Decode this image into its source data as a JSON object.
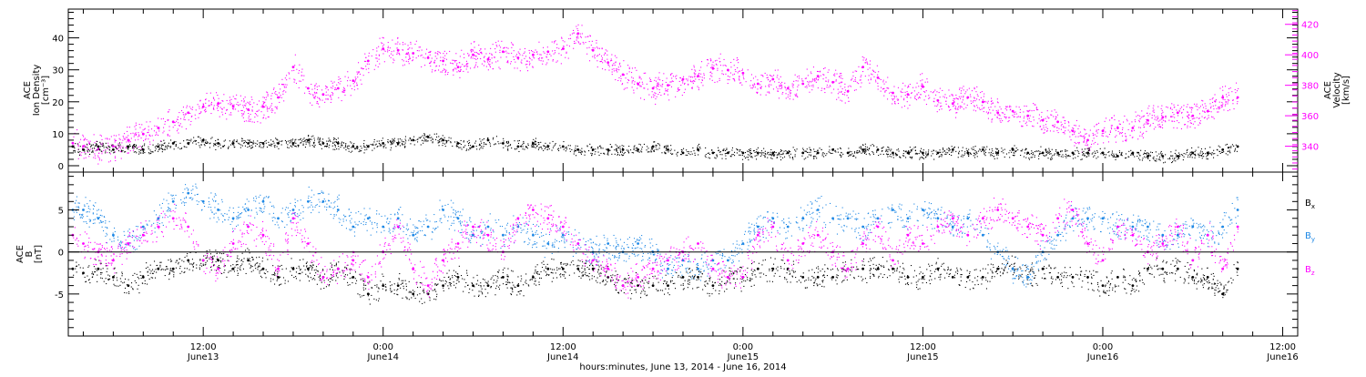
{
  "chart_data": [
    {
      "type": "scatter",
      "panel": "top",
      "ylabel": [
        "ACE",
        "Ion Density",
        "[cm⁻³]"
      ],
      "ylabel_right": [
        "ACE",
        "Velocity",
        "[km/s]"
      ],
      "ylim": [
        -2,
        49
      ],
      "ylim_right": [
        323,
        430
      ],
      "yticks": [
        0,
        10,
        20,
        30,
        40
      ],
      "yticks_right": [
        340,
        360,
        380,
        400,
        420
      ],
      "x_unit": "hours since 00:00 June 13, 2014",
      "xlim": [
        3,
        85
      ],
      "series": [
        {
          "name": "Ion Density",
          "axis": "left",
          "color": "#000000",
          "x": [
            3.3,
            4,
            5,
            6,
            7,
            8,
            9,
            10,
            11,
            12,
            13,
            14,
            15,
            16,
            17,
            18,
            19,
            20,
            21,
            22,
            23,
            24,
            25,
            26,
            27,
            28,
            29,
            30,
            31,
            32,
            33,
            34,
            35,
            36,
            37,
            38,
            39,
            40,
            41,
            42,
            43,
            44,
            45,
            46,
            47,
            48,
            49,
            50,
            51,
            52,
            53,
            54,
            55,
            56,
            57,
            58,
            59,
            60,
            61,
            62,
            63,
            64,
            65,
            66,
            67,
            68,
            69,
            70,
            71,
            72,
            73,
            74,
            75,
            76,
            77,
            78,
            79,
            80,
            81
          ],
          "y": [
            6,
            5,
            6,
            5,
            6,
            5,
            6,
            7,
            7,
            8,
            7,
            7,
            7,
            7,
            7,
            7,
            8,
            7,
            7,
            6,
            6,
            7,
            7,
            8,
            9,
            8,
            7,
            6,
            8,
            7,
            6,
            7,
            6,
            6,
            5,
            5,
            5,
            5,
            5,
            6,
            5,
            4,
            5,
            4,
            4,
            4,
            4,
            4,
            4,
            4,
            4,
            5,
            4,
            5,
            5,
            4,
            4,
            4,
            4,
            5,
            4,
            5,
            4,
            5,
            4,
            4,
            4,
            4,
            4,
            4,
            3,
            4,
            3,
            3,
            3,
            4,
            4,
            5,
            6
          ]
        },
        {
          "name": "Velocity",
          "axis": "right",
          "color": "#ff00ff",
          "x": [
            3.3,
            4,
            5,
            6,
            7,
            8,
            9,
            10,
            11,
            12,
            13,
            14,
            15,
            16,
            17,
            18,
            19,
            20,
            21,
            22,
            23,
            24,
            25,
            26,
            27,
            28,
            29,
            30,
            31,
            32,
            33,
            34,
            35,
            36,
            37,
            38,
            39,
            40,
            41,
            42,
            43,
            44,
            45,
            46,
            47,
            48,
            49,
            50,
            51,
            52,
            53,
            54,
            55,
            56,
            57,
            58,
            59,
            60,
            61,
            62,
            63,
            64,
            65,
            66,
            67,
            68,
            69,
            70,
            71,
            72,
            73,
            74,
            75,
            76,
            77,
            78,
            79,
            80,
            81
          ],
          "y": [
            342,
            340,
            338,
            340,
            344,
            348,
            352,
            356,
            362,
            366,
            368,
            366,
            364,
            366,
            372,
            392,
            378,
            374,
            378,
            383,
            396,
            404,
            403,
            401,
            398,
            396,
            392,
            400,
            397,
            402,
            398,
            400,
            402,
            404,
            414,
            403,
            395,
            387,
            381,
            378,
            380,
            384,
            386,
            391,
            390,
            388,
            381,
            384,
            378,
            381,
            386,
            382,
            376,
            392,
            385,
            375,
            374,
            379,
            370,
            368,
            372,
            369,
            362,
            363,
            360,
            357,
            356,
            350,
            344,
            350,
            352,
            352,
            357,
            359,
            362,
            360,
            363,
            372,
            372
          ]
        }
      ]
    },
    {
      "type": "scatter",
      "panel": "bottom",
      "ylabel": [
        "ACE",
        "B",
        "[nT]"
      ],
      "ylim": [
        -10,
        9.5
      ],
      "yticks": [
        -5,
        0,
        5
      ],
      "x_unit": "hours since 00:00 June 13, 2014",
      "xlim": [
        3,
        85
      ],
      "series": [
        {
          "name": "Bx",
          "color": "#000000",
          "x": [
            3.3,
            4,
            5,
            6,
            7,
            8,
            9,
            10,
            11,
            12,
            13,
            14,
            15,
            16,
            17,
            18,
            19,
            20,
            21,
            22,
            23,
            24,
            25,
            26,
            27,
            28,
            29,
            30,
            31,
            32,
            33,
            34,
            35,
            36,
            37,
            38,
            39,
            40,
            41,
            42,
            43,
            44,
            45,
            46,
            47,
            48,
            49,
            50,
            51,
            52,
            53,
            54,
            55,
            56,
            57,
            58,
            59,
            60,
            61,
            62,
            63,
            64,
            65,
            66,
            67,
            68,
            69,
            70,
            71,
            72,
            73,
            74,
            75,
            76,
            77,
            78,
            79,
            80,
            81
          ],
          "y": [
            -2,
            -2.5,
            -2,
            -3,
            -4,
            -3,
            -2,
            -2,
            -1,
            -1,
            -1,
            -2,
            -1,
            -2,
            -3,
            -2,
            -2,
            -3,
            -2,
            -3,
            -5,
            -4,
            -4,
            -5,
            -5,
            -4,
            -3,
            -4,
            -4,
            -3,
            -4,
            -3,
            -2,
            -2,
            -2,
            -2,
            -3,
            -4,
            -4,
            -4,
            -4,
            -3,
            -3,
            -4,
            -3,
            -3,
            -2,
            -2,
            -2,
            -3,
            -3,
            -3,
            -2,
            -2,
            -2,
            -2,
            -3,
            -3,
            -2,
            -3,
            -3,
            -3,
            -2,
            -2,
            -3,
            -2,
            -3,
            -3,
            -3,
            -4,
            -3,
            -4,
            -2,
            -2,
            -2,
            -3,
            -3,
            -5,
            -2
          ]
        },
        {
          "name": "By",
          "color": "#1e88e5",
          "x": [
            3.3,
            4,
            5,
            6,
            7,
            8,
            9,
            10,
            11,
            12,
            13,
            14,
            15,
            16,
            17,
            18,
            19,
            20,
            21,
            22,
            23,
            24,
            25,
            26,
            27,
            28,
            29,
            30,
            31,
            32,
            33,
            34,
            35,
            36,
            37,
            38,
            39,
            40,
            41,
            42,
            43,
            44,
            45,
            46,
            47,
            48,
            49,
            50,
            51,
            52,
            53,
            54,
            55,
            56,
            57,
            58,
            59,
            60,
            61,
            62,
            63,
            64,
            65,
            66,
            67,
            68,
            69,
            70,
            71,
            72,
            73,
            74,
            75,
            76,
            77,
            78,
            79,
            80,
            81
          ],
          "y": [
            5,
            5,
            4,
            2,
            1,
            3,
            4,
            6,
            7,
            6,
            5,
            4,
            5,
            6,
            4,
            5,
            6,
            6,
            5,
            3,
            4,
            3,
            4,
            2,
            3,
            5,
            4,
            2,
            3,
            2,
            3,
            2,
            1,
            2,
            1,
            0,
            1,
            0,
            1,
            0,
            -2,
            -1,
            -2,
            -1,
            -1,
            1,
            3,
            4,
            3,
            4,
            5,
            4,
            4,
            3,
            4,
            5,
            4,
            5,
            4,
            3,
            4,
            2,
            0,
            -2,
            -3,
            0,
            2,
            4,
            4,
            4,
            3,
            3,
            3,
            2,
            2,
            3,
            2,
            3,
            5
          ]
        },
        {
          "name": "Bz",
          "color": "#ff00ff",
          "x": [
            3.3,
            4,
            5,
            6,
            7,
            8,
            9,
            10,
            11,
            12,
            13,
            14,
            15,
            16,
            17,
            18,
            19,
            20,
            21,
            22,
            23,
            24,
            25,
            26,
            27,
            28,
            29,
            30,
            31,
            32,
            33,
            34,
            35,
            36,
            37,
            38,
            39,
            40,
            41,
            42,
            43,
            44,
            45,
            46,
            47,
            48,
            49,
            50,
            51,
            52,
            53,
            54,
            55,
            56,
            57,
            58,
            59,
            60,
            61,
            62,
            63,
            64,
            65,
            66,
            67,
            68,
            69,
            70,
            71,
            72,
            73,
            74,
            75,
            76,
            77,
            78,
            79,
            80,
            81
          ],
          "y": [
            2,
            1,
            0,
            -1,
            1,
            2,
            3,
            4,
            3,
            -1,
            -2,
            1,
            3,
            2,
            -2,
            4,
            1,
            -3,
            -2,
            -1,
            -3,
            0,
            3,
            -2,
            -4,
            -1,
            1,
            3,
            2,
            0,
            4,
            5,
            4,
            3,
            1,
            -1,
            -2,
            -4,
            -3,
            -2,
            -1,
            0,
            1,
            -2,
            -3,
            -3,
            2,
            3,
            -1,
            1,
            2,
            0,
            -2,
            1,
            3,
            -1,
            2,
            1,
            3,
            4,
            2,
            4,
            5,
            4,
            3,
            2,
            4,
            5,
            1,
            -1,
            3,
            2,
            0,
            1,
            3,
            -1,
            2,
            -2,
            3
          ]
        }
      ],
      "legend": [
        {
          "base": "B",
          "sub": "x",
          "color": "#000000"
        },
        {
          "base": "B",
          "sub": "y",
          "color": "#1e88e5"
        },
        {
          "base": "B",
          "sub": "z",
          "color": "#ff00ff"
        }
      ]
    }
  ],
  "x_axis": {
    "title": "hours:minutes, June 13, 2014 - June 16, 2014",
    "ticks": [
      {
        "hour": 12,
        "time": "12:00",
        "date": "June13"
      },
      {
        "hour": 24,
        "time": "0:00",
        "date": "June14"
      },
      {
        "hour": 36,
        "time": "12:00",
        "date": "June14"
      },
      {
        "hour": 48,
        "time": "0:00",
        "date": "June15"
      },
      {
        "hour": 60,
        "time": "12:00",
        "date": "June15"
      },
      {
        "hour": 72,
        "time": "0:00",
        "date": "June16"
      },
      {
        "hour": 84,
        "time": "12:00",
        "date": "June16"
      }
    ]
  }
}
